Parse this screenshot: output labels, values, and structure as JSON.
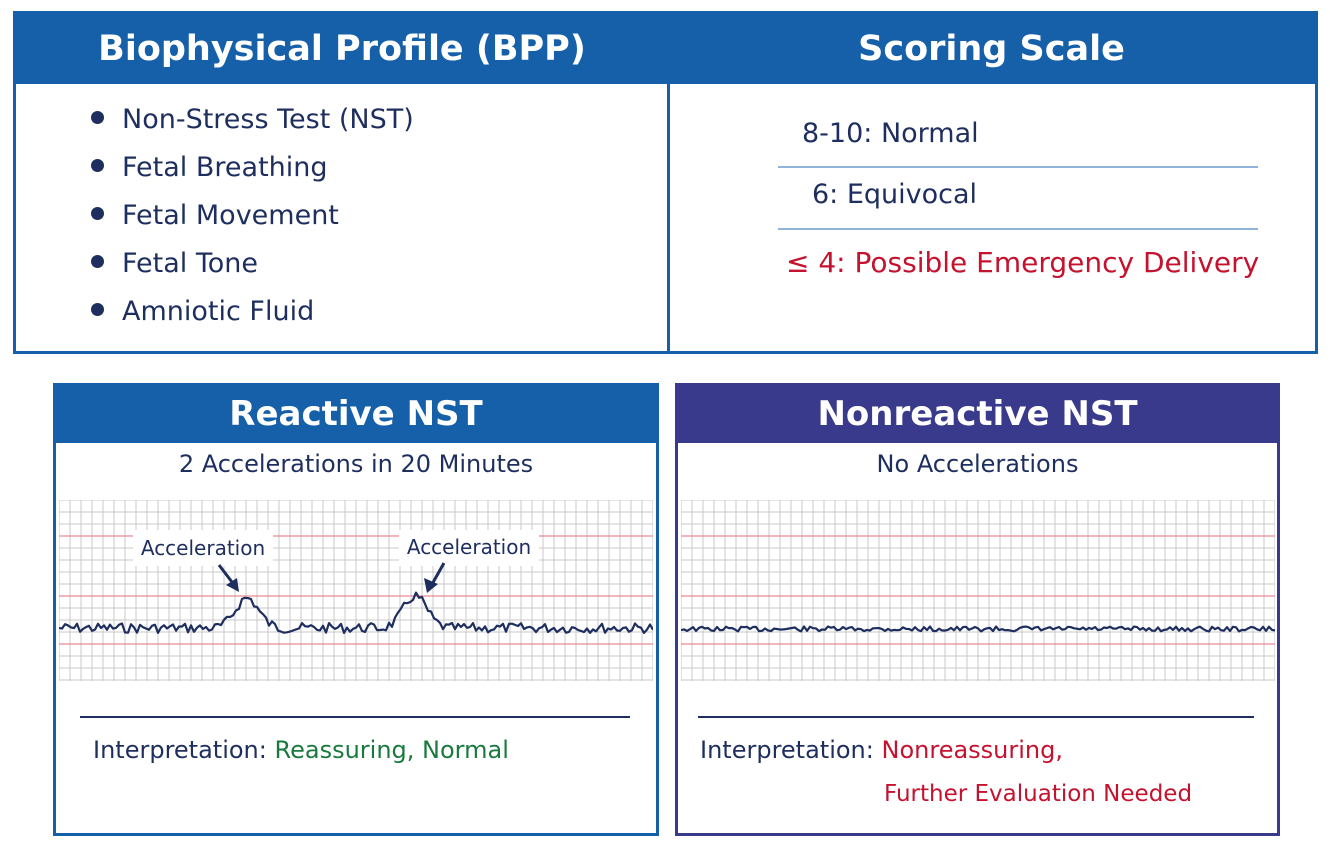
{
  "bpp": {
    "title": "Biophysical Profile (BPP)",
    "items": [
      {
        "label": "Non-Stress Test (NST)"
      },
      {
        "label": "Fetal Breathing"
      },
      {
        "label": "Fetal Movement"
      },
      {
        "label": "Fetal Tone"
      },
      {
        "label": "Amniotic Fluid"
      }
    ]
  },
  "scoring": {
    "title": "Scoring Scale",
    "rows": [
      {
        "label": "8-10: Normal",
        "color": "#1e2e5e"
      },
      {
        "label": "6: Equivocal",
        "color": "#1e2e5e"
      },
      {
        "label": "≤ 4: Possible Emergency Delivery",
        "color": "#c4122f"
      }
    ]
  },
  "reactive": {
    "title": "Reactive NST",
    "subtitle": "2 Accelerations in 20 Minutes",
    "annotation_1": "Acceleration",
    "annotation_2": "Acceleration",
    "interpretation_label": "Interpretation:",
    "interpretation_value": "Reassuring, Normal",
    "accent_color": "#1560a8"
  },
  "nonreactive": {
    "title": "Nonreactive NST",
    "subtitle": "No Accelerations",
    "interpretation_label": "Interpretation:",
    "interpretation_value_1": "Nonreassuring,",
    "interpretation_value_2": "Further Evaluation Needed",
    "accent_color": "#3a3a8c"
  },
  "colors": {
    "blue": "#1560a8",
    "purple": "#3a3a8c",
    "navy_text": "#1e2e5e",
    "green": "#1a7a3e",
    "red": "#c4122f",
    "grid_minor": "#c8c8c8",
    "grid_major": "#e88a94"
  }
}
